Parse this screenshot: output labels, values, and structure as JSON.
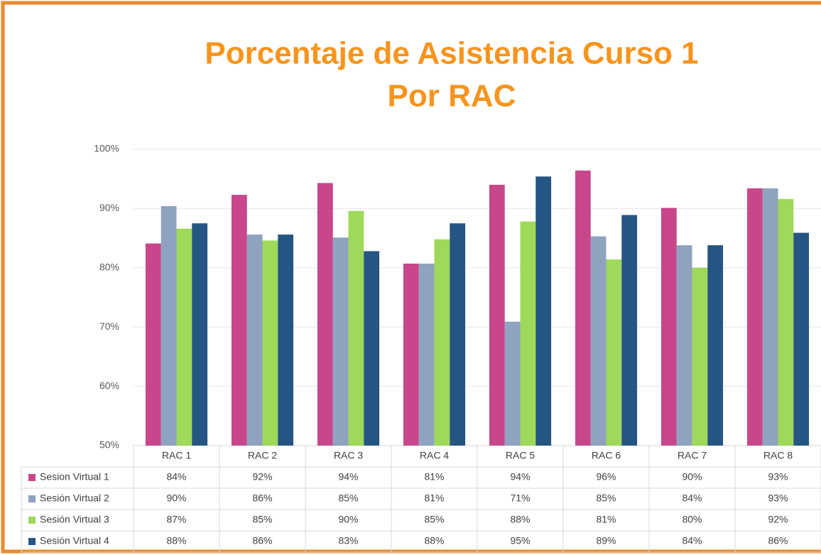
{
  "chart_data": {
    "type": "bar",
    "title": [
      "Porcentaje de Asistencia Curso 1",
      "Por RAC"
    ],
    "categories": [
      "RAC 1",
      "RAC 2",
      "RAC 3",
      "RAC 4",
      "RAC 5",
      "RAC 6",
      "RAC 7",
      "RAC 8"
    ],
    "series": [
      {
        "name": "Sesion Virtual 1",
        "color": "#c8468a",
        "values": [
          84.1,
          92.3,
          94.3,
          80.7,
          94.0,
          96.4,
          90.1,
          93.4
        ],
        "value_labels": [
          "84%",
          "92%",
          "94%",
          "81%",
          "94%",
          "96%",
          "90%",
          "93%"
        ]
      },
      {
        "name": "Sesión Virtual 2",
        "color": "#8fa2bf",
        "values": [
          90.4,
          85.6,
          85.1,
          80.7,
          70.9,
          85.3,
          83.8,
          93.4
        ],
        "value_labels": [
          "90%",
          "86%",
          "85%",
          "81%",
          "71%",
          "85%",
          "84%",
          "93%"
        ]
      },
      {
        "name": "Sesión Virtual 3",
        "color": "#9ed95a",
        "values": [
          86.6,
          84.6,
          89.6,
          84.8,
          87.8,
          81.4,
          80.0,
          91.6
        ],
        "value_labels": [
          "87%",
          "85%",
          "90%",
          "85%",
          "88%",
          "81%",
          "80%",
          "92%"
        ]
      },
      {
        "name": "Sesión Virtual 4",
        "color": "#255582",
        "values": [
          87.5,
          85.6,
          82.8,
          87.5,
          95.4,
          88.9,
          83.8,
          85.9
        ],
        "value_labels": [
          "88%",
          "86%",
          "83%",
          "88%",
          "95%",
          "89%",
          "84%",
          "86%"
        ]
      }
    ],
    "ylim": [
      50,
      100
    ],
    "yticks": [
      {
        "value": 50,
        "label": "50%"
      },
      {
        "value": 60,
        "label": "60%"
      },
      {
        "value": 70,
        "label": "70%"
      },
      {
        "value": 80,
        "label": "80%"
      },
      {
        "value": 90,
        "label": "90%"
      },
      {
        "value": 100,
        "label": "100%"
      }
    ],
    "grid": true
  }
}
